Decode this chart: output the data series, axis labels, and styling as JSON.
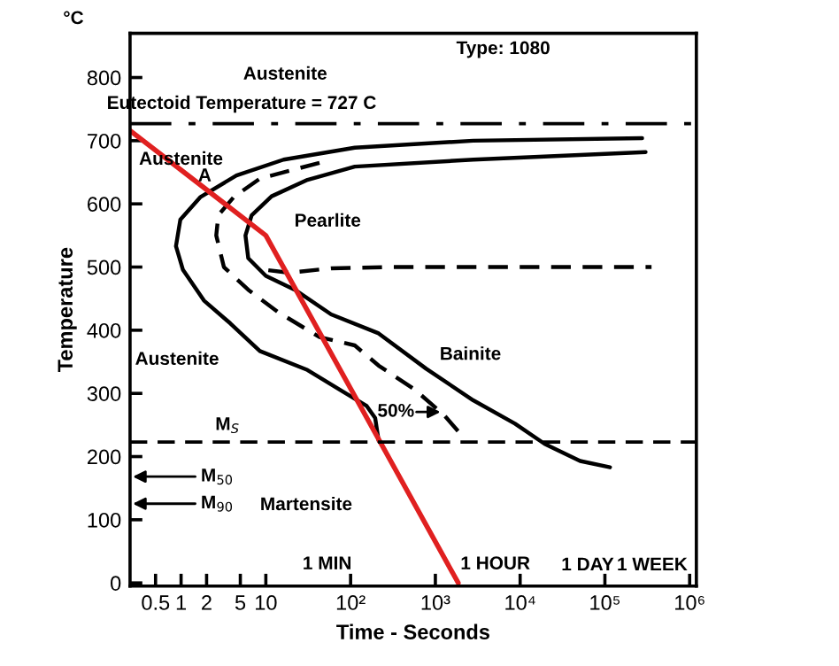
{
  "chart_data": {
    "type": "line",
    "xlabel": "Time - Seconds",
    "ylabel": "Temperature",
    "log": "x",
    "xlim": [
      0.25,
      1200000
    ],
    "ylim": [
      -5,
      870
    ],
    "xticks": [
      {
        "value": 0.5,
        "label": "0.5"
      },
      1,
      2,
      5,
      10,
      {
        "value": 100,
        "label": "10²"
      },
      {
        "value": 1000,
        "label": "10³"
      },
      {
        "value": 10000,
        "label": "10⁴"
      },
      {
        "value": 100000,
        "label": "10⁵"
      },
      {
        "value": 1000000,
        "label": "10⁶"
      }
    ],
    "yticks": [
      0,
      100,
      200,
      300,
      400,
      500,
      600,
      700,
      800
    ],
    "tick_labels": "xy",
    "grid": false,
    "marker": "none",
    "series": [
      {
        "color": "#000000",
        "line_style": "solid",
        "x": [
          275000,
          2800,
          112,
          16.2,
          4.5,
          1.7,
          0.98,
          0.87,
          1.05,
          1.86,
          3.8,
          8.5,
          31,
          81,
          155,
          195,
          214
        ],
        "values": [
          704,
          700,
          689,
          670,
          645,
          611,
          575,
          533,
          496,
          447,
          411,
          367,
          337,
          303,
          280,
          261,
          225
        ]
      },
      {
        "color": "#000000",
        "line_style": "dashed",
        "x": [
          43,
          8.5,
          4.2,
          2.75,
          2.6,
          3.2,
          6.2,
          13.8,
          43,
          112,
          214,
          560,
          1260,
          2190
        ],
        "values": [
          665,
          640,
          611,
          582,
          550,
          500,
          464,
          429,
          389,
          376,
          344,
          307,
          266,
          229
        ]
      },
      {
        "color": "#000000",
        "line_style": "dashed",
        "x": [
          10.7,
          19,
          59,
          316,
          355000
        ],
        "values": [
          495,
          491,
          498,
          500,
          500
        ]
      },
      {
        "color": "#000000",
        "line_style": "solid",
        "x": [
          302000,
          2800,
          112,
          31,
          11.7,
          6.8,
          5.75,
          6.2,
          10,
          22,
          59,
          214,
          780,
          2800,
          8700,
          19500,
          51000,
          115000
        ],
        "values": [
          682,
          670,
          659,
          638,
          612,
          582,
          550,
          514,
          486,
          464,
          425,
          395,
          339,
          289,
          252,
          220,
          193,
          183
        ]
      },
      {
        "color": "#e02020",
        "line_style": "solid",
        "x": [
          0.25,
          10,
          1860
        ],
        "values": [
          716,
          550,
          0
        ]
      }
    ],
    "ref_lines": [
      {
        "axis": "y",
        "value": 727,
        "line_style": "dashdot",
        "color": "#000000"
      },
      {
        "axis": "y",
        "value": 223,
        "line_style": "dashed",
        "color": "#000000"
      }
    ],
    "annotations": [
      "°C",
      "Type: 1080",
      "Austenite",
      "Eutectoid Temperature = 727 C",
      "Austenite",
      "A",
      "Pearlite",
      "Bainite",
      "Austenite",
      "M$_{S}$",
      "M$_{50}$",
      "M$_{90}$",
      "Martensite",
      "50%",
      "1 MIN",
      "1 HOUR",
      "1 DAY",
      "1 WEEK"
    ]
  }
}
